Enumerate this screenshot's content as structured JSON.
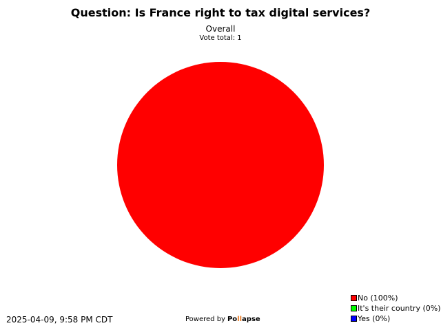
{
  "chart_data": {
    "type": "pie",
    "title": "Question: Is France right to tax digital services?",
    "subtitle": "Overall",
    "vote_total_label": "Vote total: 1",
    "slices": [
      {
        "label": "No (100%)",
        "value": 100,
        "color": "#ff0000"
      },
      {
        "label": "It's their country (0%)",
        "value": 0,
        "color": "#00ff00"
      },
      {
        "label": "Yes (0%)",
        "value": 0,
        "color": "#0000ff"
      }
    ],
    "legend_position": "bottom-right"
  },
  "footer": {
    "timestamp": "2025-04-09, 9:58 PM CDT",
    "powered_by": "Powered by",
    "brand_start": "Po",
    "brand_mark": "ll",
    "brand_end": "apse"
  }
}
